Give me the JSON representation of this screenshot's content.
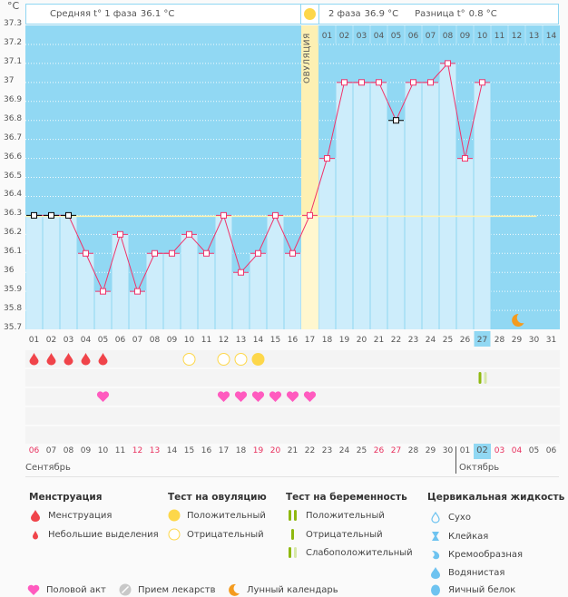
{
  "header": {
    "unit": "°C",
    "phase1_label": "Средняя t° 1 фаза",
    "phase1_value": "36.1 °C",
    "phase2_label": "2 фаза",
    "phase2_value": "36.9 °C",
    "diff_label": "Разница t°",
    "diff_value": "0.8 °C",
    "ovulation_label": "ОВУЛЯЦИЯ"
  },
  "colors": {
    "plot_bg": "#91d8f3",
    "bar": "#cdedfb",
    "line": "#f0336a",
    "ovulation": "#fdf0b3",
    "coverline": "#fff3b0",
    "weekend": "#e8305e",
    "highlight": "#91d8f3"
  },
  "chart_data": {
    "type": "line",
    "title": "",
    "ylabel": "°C",
    "ylim": [
      35.7,
      37.3
    ],
    "yticks": [
      "37.3",
      "37.2",
      "37.1",
      "37",
      "36.9",
      "36.8",
      "36.7",
      "36.6",
      "36.5",
      "36.4",
      "36.3",
      "36.2",
      "36.1",
      "36",
      "35.9",
      "35.8",
      "35.7"
    ],
    "cycle_days": [
      "01",
      "02",
      "03",
      "04",
      "05",
      "06",
      "07",
      "08",
      "09",
      "10",
      "11",
      "12",
      "13",
      "14",
      "15",
      "16",
      "17",
      "18",
      "19",
      "20",
      "21",
      "22",
      "23",
      "24",
      "25",
      "26",
      "27",
      "28",
      "29",
      "30",
      "31"
    ],
    "temperatures": [
      36.3,
      36.3,
      36.3,
      36.1,
      35.9,
      36.2,
      35.9,
      36.1,
      36.1,
      36.2,
      36.1,
      36.3,
      36.0,
      36.1,
      36.3,
      36.1,
      36.3,
      36.6,
      37.0,
      37.0,
      37.0,
      36.8,
      37.0,
      37.0,
      37.1,
      36.6,
      37.0
    ],
    "excluded_days": [
      1,
      2,
      3,
      22
    ],
    "coverline": 36.3,
    "ovulation_day": 17,
    "post_ovulation_days": [
      "01",
      "02",
      "03",
      "04",
      "05",
      "06",
      "07",
      "08",
      "09",
      "10",
      "11",
      "12",
      "13",
      "14"
    ],
    "today_cycle_day": "27",
    "moon_day": 29,
    "calendar_dates": [
      "06",
      "07",
      "08",
      "09",
      "10",
      "11",
      "12",
      "13",
      "14",
      "15",
      "16",
      "17",
      "18",
      "19",
      "20",
      "21",
      "22",
      "23",
      "24",
      "25",
      "26",
      "27",
      "28",
      "29",
      "30",
      "01",
      "02",
      "03",
      "04",
      "05",
      "06"
    ],
    "weekend_indices": [
      0,
      6,
      7,
      13,
      14,
      20,
      21,
      27,
      28
    ],
    "today_calendar_index": 26,
    "months": [
      "Сентябрь",
      "Октябрь"
    ],
    "month_split_index": 25,
    "menstruation_days": [
      1,
      2,
      3,
      4,
      5
    ],
    "ovulation_test": [
      {
        "day": 10,
        "result": "negative"
      },
      {
        "day": 12,
        "result": "negative"
      },
      {
        "day": 13,
        "result": "negative"
      },
      {
        "day": 14,
        "result": "positive"
      }
    ],
    "intercourse_days": [
      5,
      12,
      13,
      14,
      15,
      16,
      17
    ],
    "pregnancy_test": [
      {
        "day": 27,
        "result": "weak-positive"
      }
    ]
  },
  "legend": {
    "menstruation": {
      "title": "Менструация",
      "items": [
        "Менструация",
        "Небольшие выделения"
      ]
    },
    "ovulation_test": {
      "title": "Тест на овуляцию",
      "items": [
        "Положительный",
        "Отрицательный"
      ]
    },
    "pregnancy_test": {
      "title": "Тест на беременность",
      "items": [
        "Положительный",
        "Отрицательный",
        "Слабоположительный"
      ]
    },
    "cervical_fluid": {
      "title": "Цервикальная жидкость",
      "items": [
        "Сухо",
        "Клейкая",
        "Кремообразная",
        "Водянистая",
        "Яичный белок"
      ]
    },
    "other": [
      "Половой акт",
      "Прием лекарств",
      "Лунный календарь"
    ]
  }
}
